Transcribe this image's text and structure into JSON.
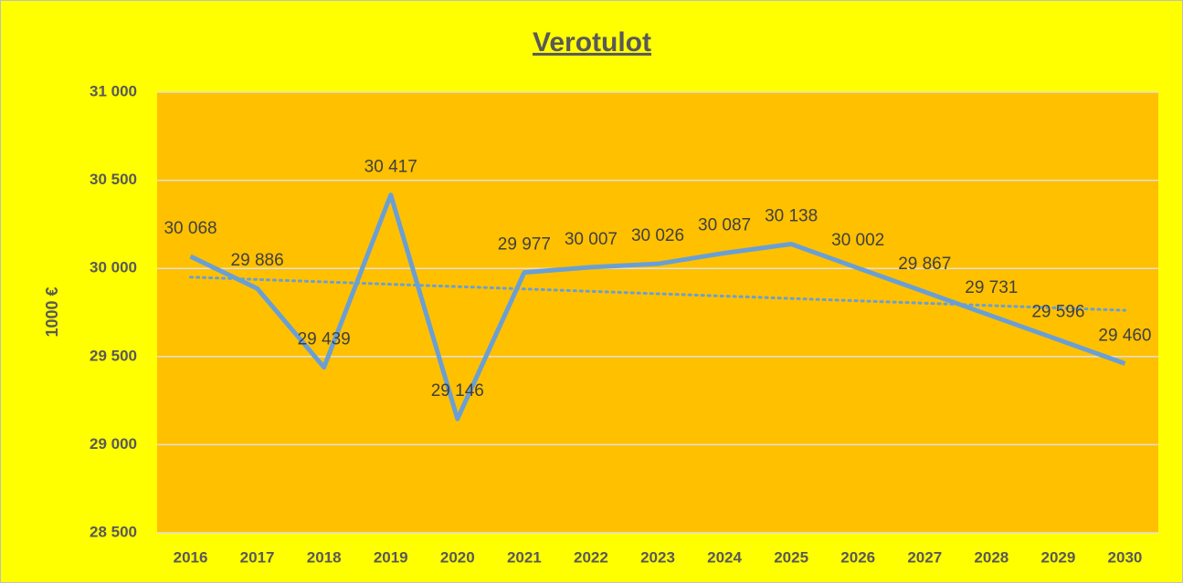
{
  "chart_data": {
    "type": "line",
    "title": "Verotulot",
    "y_label": "1000 €",
    "categories": [
      "2016",
      "2017",
      "2018",
      "2019",
      "2020",
      "2021",
      "2022",
      "2023",
      "2024",
      "2025",
      "2026",
      "2027",
      "2028",
      "2029",
      "2030"
    ],
    "series": [
      {
        "name": "Verotulot",
        "color": "#6a9fd4",
        "values": [
          30068,
          29886,
          29439,
          30417,
          29146,
          29977,
          30007,
          30026,
          30087,
          30138,
          30002,
          29867,
          29731,
          29596,
          29460
        ],
        "value_labels": [
          "30 068",
          "29 886",
          "29 439",
          "30 417",
          "29 146",
          "29 977",
          "30 007",
          "30 026",
          "30 087",
          "30 138",
          "30 002",
          "29 867",
          "29 731",
          "29 596",
          "29 460"
        ]
      }
    ],
    "ylim": [
      28500,
      31000
    ],
    "yticks": [
      {
        "value": 28500,
        "label": "28 500"
      },
      {
        "value": 29000,
        "label": "29 000"
      },
      {
        "value": 29500,
        "label": "29 500"
      },
      {
        "value": 30000,
        "label": "30 000"
      },
      {
        "value": 30500,
        "label": "30 500"
      },
      {
        "value": 31000,
        "label": "31 000"
      }
    ],
    "grid": true,
    "trendline": "linear",
    "background": "#ffff00",
    "plot_background": "#ffc000"
  }
}
